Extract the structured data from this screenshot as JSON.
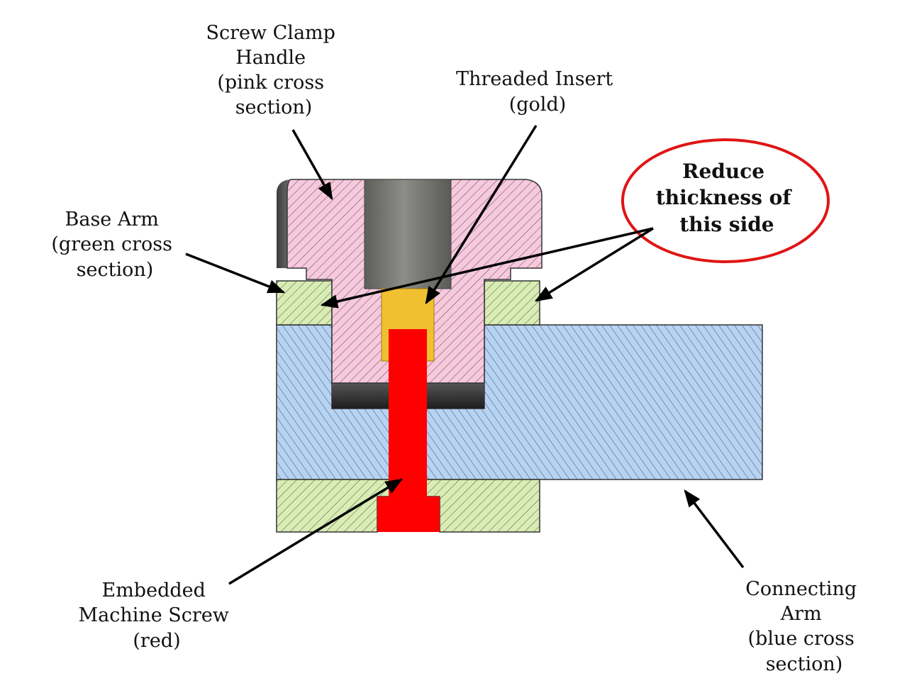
{
  "labels": {
    "clamp_handle": [
      "Screw Clamp",
      "Handle",
      "(pink cross",
      "section)"
    ],
    "threaded_insert": [
      "Threaded Insert",
      "(gold)"
    ],
    "base_arm": [
      "Base Arm",
      "(green cross",
      "section)"
    ],
    "callout": [
      "Reduce",
      "thickness of",
      "this side"
    ],
    "machine_screw": [
      "Embedded",
      "Machine Screw",
      "(red)"
    ],
    "connecting_arm": [
      "Connecting",
      "Arm",
      "(blue cross",
      "section)"
    ]
  },
  "colors": {
    "pink_section": "#f6c9dc",
    "green_section": "#d8ecb4",
    "blue_section": "#b6d3f2",
    "gold_insert": "#f0c030",
    "red_screw": "#ff0000",
    "callout_outline": "#e01515",
    "bore_gray": "#7a7a77"
  }
}
